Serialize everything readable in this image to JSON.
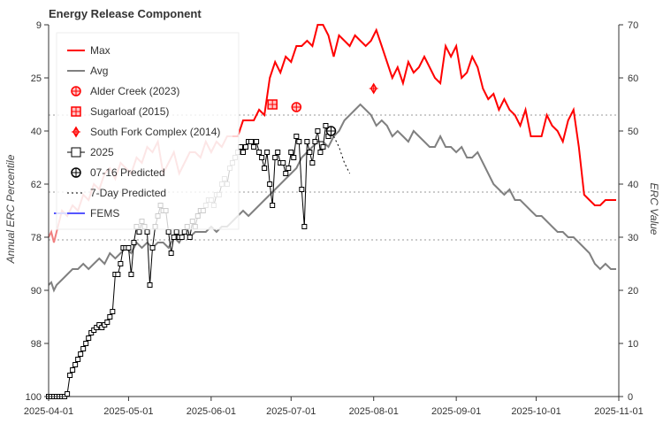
{
  "chart_data": {
    "type": "line",
    "title": "Energy Release Component",
    "ylabel_left": "Annual ERC Percentile",
    "ylabel_right": "ERC Value",
    "x_ticks": [
      "2025-04-01",
      "2025-05-01",
      "2025-06-01",
      "2025-07-01",
      "2025-08-01",
      "2025-09-01",
      "2025-10-01",
      "2025-11-01"
    ],
    "x_range": [
      "2025-04-01",
      "2025-11-01"
    ],
    "y_left_ticks": [
      "100",
      "98",
      "90",
      "78",
      "62",
      "40",
      "25",
      "9"
    ],
    "y_right_ticks": [
      "0",
      "10",
      "20",
      "30",
      "40",
      "50",
      "60",
      "70"
    ],
    "y_right_range": [
      0,
      70
    ],
    "percentile_lines_erc": [
      29.5,
      38.5,
      53.0
    ],
    "legend_position": "top-left",
    "colors": {
      "max": "#ff0000",
      "max_faded": "#f08080",
      "avg": "#808080",
      "fems": "#5555ff",
      "year2025": "#000000",
      "grid": "#999999"
    },
    "legend": [
      {
        "label": "Max",
        "symbol": "line",
        "color": "#ff0000"
      },
      {
        "label": "Avg",
        "symbol": "line",
        "color": "#808080"
      },
      {
        "label": "Alder Creek (2023)",
        "symbol": "circle-cross",
        "color": "#ff0000"
      },
      {
        "label": "Sugarloaf (2015)",
        "symbol": "square-cross",
        "color": "#ff0000"
      },
      {
        "label": "South Fork Complex (2014)",
        "symbol": "diamond-cross",
        "color": "#ff0000"
      },
      {
        "label": "2025",
        "symbol": "line-square",
        "color": "#000000"
      },
      {
        "label": "07-16 Predicted",
        "symbol": "circle-cross",
        "color": "#000000"
      },
      {
        "label": "7-Day Predicted",
        "symbol": "dotted",
        "color": "#000000"
      },
      {
        "label": "FEMS",
        "symbol": "line",
        "color": "#5555ff"
      }
    ],
    "series": [
      {
        "name": "Max",
        "x_day_of_year": [
          91,
          92,
          93,
          94,
          96,
          98,
          100,
          102,
          104,
          106,
          108,
          110,
          112,
          114,
          116,
          118,
          120,
          122,
          124,
          126,
          128,
          130,
          132,
          134,
          136,
          138,
          140,
          142,
          144,
          146,
          148,
          150,
          152,
          154,
          156,
          158,
          160,
          162,
          164,
          166,
          168,
          170,
          172,
          174,
          176,
          178,
          180,
          182,
          184,
          186,
          188,
          190,
          192,
          194,
          196,
          198,
          200,
          202,
          204,
          206,
          208,
          210,
          212,
          214,
          216,
          218,
          220,
          222,
          224,
          226,
          228,
          230,
          232,
          234,
          236,
          238,
          240,
          242,
          244,
          246,
          248,
          250,
          252,
          254,
          256,
          258,
          260,
          262,
          264,
          266,
          268,
          270,
          272,
          274,
          276,
          278,
          280,
          282,
          284,
          286,
          288,
          290,
          292,
          294,
          296,
          298,
          300,
          302,
          304
        ],
        "values": [
          30,
          31,
          29,
          31,
          35,
          34,
          36,
          35,
          38,
          37,
          40,
          39,
          42,
          43,
          41,
          44,
          43,
          42,
          45,
          44,
          47,
          46,
          48,
          42,
          44,
          46,
          42,
          44,
          46,
          46,
          45,
          48,
          46,
          48,
          47,
          49,
          49,
          49,
          52,
          52,
          52,
          54,
          53,
          60,
          63,
          61,
          64,
          63,
          66,
          66,
          67,
          66,
          70,
          70,
          68,
          64,
          68,
          67,
          66,
          68,
          67,
          66,
          67,
          69,
          66,
          63,
          60,
          62,
          59,
          63,
          61,
          62,
          64,
          62,
          60,
          59,
          66,
          64,
          66,
          60,
          61,
          64,
          62,
          58,
          56,
          57,
          54,
          56,
          54,
          53,
          51,
          54,
          49,
          49,
          49,
          53,
          51,
          50,
          48,
          52,
          54,
          47,
          38,
          37,
          36,
          36,
          37,
          37,
          37
        ]
      },
      {
        "name": "Avg",
        "x_day_of_year": [
          91,
          92,
          93,
          94,
          96,
          98,
          100,
          102,
          104,
          106,
          108,
          110,
          112,
          114,
          116,
          118,
          120,
          122,
          124,
          126,
          128,
          130,
          132,
          134,
          136,
          138,
          140,
          142,
          144,
          146,
          148,
          150,
          152,
          154,
          156,
          158,
          160,
          162,
          164,
          166,
          168,
          170,
          172,
          174,
          176,
          178,
          180,
          182,
          184,
          186,
          188,
          190,
          192,
          194,
          196,
          198,
          200,
          202,
          204,
          206,
          208,
          210,
          212,
          214,
          216,
          218,
          220,
          222,
          224,
          226,
          228,
          230,
          232,
          234,
          236,
          238,
          240,
          242,
          244,
          246,
          248,
          250,
          252,
          254,
          256,
          258,
          260,
          262,
          264,
          266,
          268,
          270,
          272,
          274,
          276,
          278,
          280,
          282,
          284,
          286,
          288,
          290,
          292,
          294,
          296,
          298,
          300,
          302,
          304
        ],
        "values": [
          21,
          21.5,
          20,
          21,
          22,
          23,
          24,
          24,
          25,
          24,
          25,
          26,
          25,
          27,
          26,
          27,
          28,
          27,
          29,
          28,
          29,
          28,
          29,
          29,
          28,
          30,
          29,
          31,
          30,
          31,
          31,
          31,
          32,
          31,
          32,
          32,
          33,
          34,
          35,
          34,
          35,
          36,
          37,
          38,
          39,
          40,
          41,
          42,
          43,
          45,
          46,
          47,
          48,
          48,
          47,
          49,
          50,
          52,
          53,
          54,
          55,
          54,
          53,
          51,
          52,
          51,
          49,
          50,
          49,
          48,
          50,
          49,
          48,
          47,
          47,
          49,
          47,
          47,
          46,
          47,
          45,
          45,
          46,
          44,
          42,
          40,
          39,
          38,
          39,
          37,
          37,
          36,
          35,
          34,
          34,
          33,
          32,
          31,
          31,
          30,
          30,
          29,
          28,
          27,
          25,
          24,
          25,
          24,
          24
        ]
      },
      {
        "name": "2025",
        "x_day_of_year": [
          91,
          92,
          93,
          94,
          95,
          96,
          97,
          98,
          99,
          100,
          101,
          102,
          103,
          104,
          105,
          106,
          107,
          108,
          109,
          110,
          111,
          112,
          113,
          114,
          115,
          116,
          117,
          118,
          119,
          120,
          121,
          122,
          123,
          124,
          125,
          126,
          127,
          128,
          129,
          130,
          131,
          132,
          133,
          134,
          135,
          136,
          137,
          138,
          139,
          140,
          141,
          142,
          143,
          144,
          145,
          146,
          147,
          148,
          149,
          150,
          151,
          152,
          153,
          154,
          155,
          156,
          157,
          158,
          159,
          160,
          161,
          162,
          163,
          164,
          165,
          166,
          167,
          168,
          169,
          170,
          171,
          172,
          173,
          174,
          175,
          176,
          177,
          178,
          179,
          180,
          181,
          182,
          183,
          184,
          185,
          186,
          187,
          188,
          189,
          190,
          191,
          192,
          193,
          194,
          195,
          196
        ],
        "values": [
          0,
          0,
          0,
          0,
          0,
          0,
          0,
          0.5,
          4,
          5,
          6,
          7,
          8,
          9,
          10,
          11,
          12,
          12.5,
          13,
          13.5,
          13,
          13.5,
          14,
          15,
          16,
          23,
          23,
          25,
          28,
          28,
          28,
          23,
          29,
          32,
          31,
          33,
          32,
          31,
          21,
          28,
          32,
          34,
          36,
          35,
          35,
          31,
          27,
          30,
          31,
          30,
          30,
          31,
          32,
          30,
          33,
          32,
          34,
          35,
          35,
          36,
          37,
          37,
          36,
          38,
          38,
          40,
          41,
          40,
          43,
          44,
          45,
          46,
          47,
          46,
          47,
          48,
          48,
          47,
          48,
          46,
          45,
          43,
          46,
          40,
          36,
          45,
          46,
          44,
          44,
          42,
          43,
          46,
          45,
          49,
          48,
          39,
          32,
          48,
          46,
          44,
          48,
          50,
          46,
          47,
          51,
          49
        ]
      },
      {
        "name": "7-Day Predicted",
        "x_day_of_year": [
          198,
          200,
          202,
          204
        ],
        "values": [
          49,
          47,
          44,
          42
        ]
      },
      {
        "name": "FEMS",
        "x_day_of_year": [
          93,
          100
        ],
        "values": [
          34.5,
          34.5
        ]
      }
    ],
    "markers": [
      {
        "name": "Alder Creek (2023)",
        "x_day_of_year": 184,
        "value": 54.5,
        "symbol": "circle-cross"
      },
      {
        "name": "Sugarloaf (2015)",
        "x_day_of_year": 175,
        "value": 55.0,
        "symbol": "square-cross"
      },
      {
        "name": "South Fork Complex (2014)",
        "x_day_of_year": 213,
        "value": 58.0,
        "symbol": "diamond-cross"
      },
      {
        "name": "07-16 Predicted",
        "x_day_of_year": 197,
        "value": 50.0,
        "symbol": "circle-cross"
      }
    ]
  }
}
